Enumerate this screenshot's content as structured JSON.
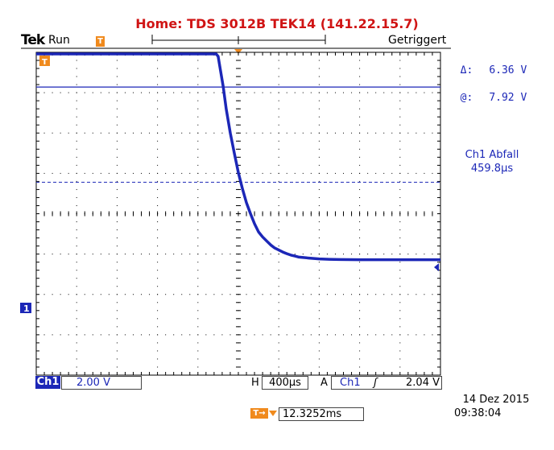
{
  "header": {
    "title": "Home:  TDS 3012B  TEK14  (141.22.15.7)",
    "brand": "Tek",
    "run_state": "Run",
    "trigger_status": "Getriggert"
  },
  "cursor": {
    "delta_label": "Δ:",
    "delta_value": "6.36 V",
    "at_label": "@:",
    "at_value": "7.92 V"
  },
  "measurement": {
    "label": "Ch1 Abfall",
    "value": "459.8µs"
  },
  "markers": {
    "trigger_marker": "T",
    "channel_marker": "1"
  },
  "status_bar": {
    "channel": "Ch1",
    "volts_per_div": "2.00 V",
    "horizontal_label": "H",
    "time_per_div": "400µs",
    "trigger_mode": "A",
    "trigger_source": "Ch1",
    "trigger_slope_symbol": "ʃ",
    "trigger_level": "2.04 V"
  },
  "footer": {
    "trigger_position_icon": "T→",
    "trigger_position": "12.3252ms",
    "date": "14 Dez  2015",
    "time": "09:38:04"
  },
  "colors": {
    "trace": "#1c27b7",
    "title": "#d01414",
    "marker": "#f08a1d"
  },
  "chart_data": {
    "type": "line",
    "title": "",
    "xlabel": "",
    "ylabel": "",
    "x_unit": "µs",
    "y_unit": "V",
    "xlim": [
      -2000,
      2000
    ],
    "ylim": [
      -8,
      8
    ],
    "series": [
      {
        "name": "",
        "x": [
          -2000,
          -1600,
          -1200,
          -400,
          -220,
          -200,
          -180,
          -150,
          -120,
          -80,
          -40,
          0,
          40,
          80,
          120,
          160,
          200,
          240,
          280,
          320,
          360,
          400,
          440,
          480,
          520,
          560,
          600,
          700,
          800,
          900,
          1000,
          1200,
          1400,
          1600,
          2000
        ],
        "y": [
          7.92,
          7.92,
          7.92,
          7.92,
          7.92,
          7.8,
          7.2,
          6.3,
          5.2,
          4.0,
          3.0,
          2.04,
          1.25,
          0.55,
          0.0,
          -0.5,
          -0.9,
          -1.15,
          -1.35,
          -1.55,
          -1.7,
          -1.8,
          -1.9,
          -1.98,
          -2.05,
          -2.1,
          -2.15,
          -2.2,
          -2.24,
          -2.26,
          -2.27,
          -2.28,
          -2.28,
          -2.28,
          -2.28
        ]
      }
    ],
    "cursors": {
      "h1": 7.92,
      "h2": 1.56
    },
    "reference_line": 6.28,
    "trigger_level": 2.04,
    "grid": true
  }
}
